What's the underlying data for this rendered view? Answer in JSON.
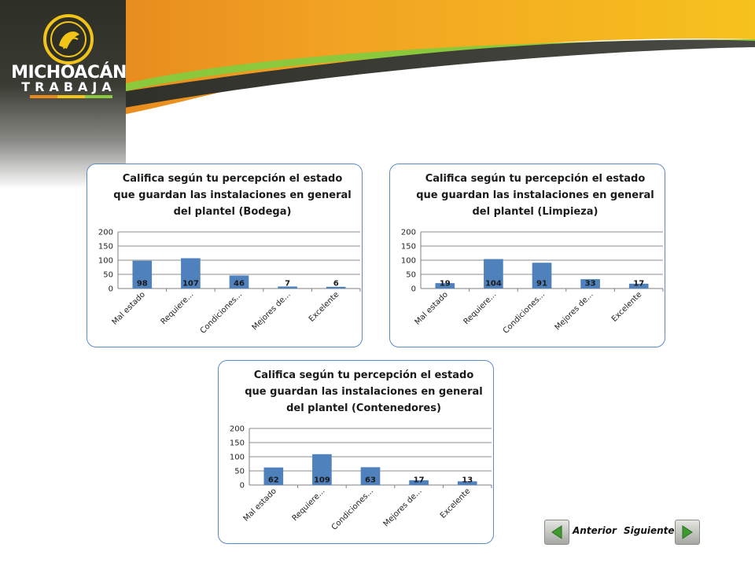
{
  "brand": {
    "line1": "MICHOACÁN",
    "line2": "TRABAJA",
    "colors": {
      "orange": "#e8891c",
      "yellow": "#f2c318",
      "green": "#8cc83c",
      "dark": "#2d2e26"
    }
  },
  "nav": {
    "prev_label": "Anterior",
    "next_label": "Siguiente",
    "prev_icon": "arrow-left-icon",
    "next_icon": "arrow-right-icon"
  },
  "chart_data": [
    {
      "type": "bar",
      "title_lines": [
        "Califica según tu percepción el estado",
        "que guardan las instalaciones en general",
        "del plantel (Bodega)"
      ],
      "categories": [
        "Mal estado",
        "Requiere...",
        "Condiciones...",
        "Mejores de...",
        "Excelente"
      ],
      "values": [
        98,
        107,
        46,
        7,
        6
      ],
      "ylim": [
        0,
        200
      ],
      "yticks": [
        0,
        50,
        100,
        150,
        200
      ],
      "bar_color": "#4f81bd",
      "grid": true,
      "legend": "none"
    },
    {
      "type": "bar",
      "title_lines": [
        "Califica según tu percepción el estado",
        "que guardan las instalaciones en general",
        "del plantel (Limpieza)"
      ],
      "categories": [
        "Mal estado",
        "Requiere...",
        "Condiciones...",
        "Mejores de...",
        "Excelente"
      ],
      "values": [
        19,
        104,
        91,
        33,
        17
      ],
      "ylim": [
        0,
        200
      ],
      "yticks": [
        0,
        50,
        100,
        150,
        200
      ],
      "bar_color": "#4f81bd",
      "grid": true,
      "legend": "none"
    },
    {
      "type": "bar",
      "title_lines": [
        "Califica según tu percepción el estado",
        "que guardan las instalaciones en general",
        "del plantel (Contenedores)"
      ],
      "categories": [
        "Mal estado",
        "Requiere...",
        "Condiciones...",
        "Mejores de...",
        "Excelente"
      ],
      "values": [
        62,
        109,
        63,
        17,
        13
      ],
      "ylim": [
        0,
        200
      ],
      "yticks": [
        0,
        50,
        100,
        150,
        200
      ],
      "bar_color": "#4f81bd",
      "grid": true,
      "legend": "none"
    }
  ]
}
